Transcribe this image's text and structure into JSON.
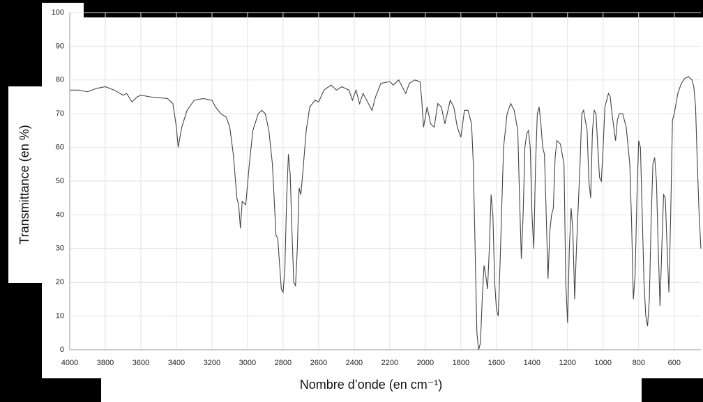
{
  "chart_data": {
    "type": "line",
    "xlabel": "Nombre d’onde (en cm⁻¹)",
    "ylabel": "Transmittance (en %)",
    "x": [
      4000,
      3950,
      3900,
      3850,
      3800,
      3750,
      3700,
      3680,
      3650,
      3620,
      3600,
      3550,
      3450,
      3420,
      3400,
      3390,
      3370,
      3340,
      3300,
      3250,
      3200,
      3180,
      3150,
      3120,
      3100,
      3080,
      3060,
      3050,
      3040,
      3030,
      3010,
      2990,
      2970,
      2940,
      2920,
      2900,
      2880,
      2860,
      2840,
      2830,
      2810,
      2800,
      2790,
      2780,
      2770,
      2760,
      2750,
      2740,
      2730,
      2720,
      2710,
      2700,
      2690,
      2670,
      2650,
      2620,
      2600,
      2570,
      2530,
      2500,
      2470,
      2430,
      2410,
      2390,
      2370,
      2350,
      2330,
      2300,
      2280,
      2250,
      2200,
      2180,
      2150,
      2130,
      2110,
      2090,
      2060,
      2030,
      2020,
      2010,
      1990,
      1970,
      1950,
      1930,
      1910,
      1890,
      1860,
      1840,
      1820,
      1800,
      1780,
      1760,
      1740,
      1730,
      1720,
      1710,
      1700,
      1690,
      1680,
      1670,
      1660,
      1650,
      1640,
      1630,
      1620,
      1610,
      1600,
      1590,
      1580,
      1560,
      1540,
      1520,
      1500,
      1480,
      1470,
      1460,
      1450,
      1440,
      1430,
      1420,
      1410,
      1400,
      1390,
      1380,
      1370,
      1360,
      1350,
      1340,
      1330,
      1320,
      1310,
      1300,
      1290,
      1280,
      1270,
      1260,
      1240,
      1220,
      1210,
      1200,
      1190,
      1180,
      1170,
      1160,
      1150,
      1130,
      1120,
      1110,
      1100,
      1090,
      1080,
      1070,
      1060,
      1050,
      1040,
      1030,
      1020,
      1010,
      1000,
      990,
      970,
      960,
      950,
      940,
      930,
      920,
      910,
      890,
      870,
      850,
      840,
      830,
      820,
      810,
      800,
      790,
      780,
      770,
      760,
      750,
      740,
      730,
      720,
      710,
      700,
      690,
      680,
      670,
      660,
      650,
      640,
      630,
      620,
      610,
      600,
      580,
      560,
      540,
      520,
      500,
      490,
      480,
      470,
      460,
      450
    ],
    "values": [
      77,
      77,
      76.5,
      77.5,
      78,
      77,
      75.5,
      76,
      73.5,
      75,
      75.5,
      75,
      74.5,
      73,
      66,
      60,
      66,
      71,
      74,
      74.5,
      74,
      72,
      70,
      69,
      66,
      58,
      45,
      43,
      36,
      44,
      43,
      55,
      65,
      70,
      71,
      70,
      65,
      55,
      34,
      33,
      18,
      17,
      24,
      45,
      58,
      52,
      35,
      20,
      19,
      30,
      48,
      46,
      52,
      65,
      72,
      74,
      73.5,
      77,
      78.5,
      77,
      78,
      77,
      74,
      77,
      73,
      76,
      74,
      71,
      75,
      79,
      79.5,
      78.5,
      80,
      78,
      76,
      79,
      80,
      79.5,
      74,
      66,
      72,
      67,
      66,
      73,
      72,
      67,
      74,
      72,
      66,
      63,
      71,
      71,
      67,
      55,
      30,
      5,
      0,
      2,
      15,
      25,
      22,
      18,
      30,
      46,
      40,
      20,
      12,
      10,
      25,
      60,
      70,
      73,
      71,
      65,
      45,
      27,
      40,
      60,
      64,
      65,
      60,
      40,
      30,
      55,
      70,
      72,
      67,
      60,
      58,
      40,
      21,
      35,
      40,
      42,
      57,
      62,
      61,
      55,
      20,
      8,
      30,
      42,
      35,
      15,
      30,
      55,
      70,
      71,
      68,
      65,
      50,
      45,
      65,
      71,
      70,
      60,
      51,
      50,
      60,
      72,
      76,
      75,
      70,
      66,
      62,
      68,
      70,
      70,
      66,
      55,
      38,
      15,
      22,
      45,
      62,
      60,
      40,
      20,
      10,
      7,
      15,
      38,
      55,
      57,
      50,
      30,
      13,
      30,
      46,
      45,
      30,
      17,
      40,
      68,
      70,
      76,
      79,
      80.5,
      81,
      80,
      78,
      72,
      55,
      40,
      30
    ],
    "color": "#444444",
    "xlim": [
      4000,
      450
    ],
    "xticks": [
      4000,
      3800,
      3600,
      3400,
      3200,
      3000,
      2800,
      2600,
      2400,
      2200,
      2000,
      1800,
      1600,
      1400,
      1200,
      1000,
      800,
      600
    ],
    "ylim": [
      0,
      100
    ],
    "yticks": [
      0,
      10,
      20,
      30,
      40,
      50,
      60,
      70,
      80,
      90,
      100
    ],
    "grid": true
  }
}
